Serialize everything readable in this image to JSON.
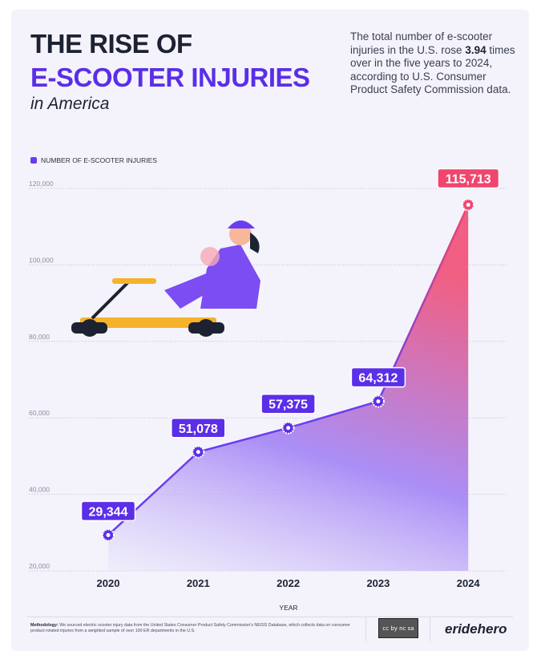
{
  "header": {
    "title_line1": "THE RISE OF",
    "title_line2": "E-SCOOTER INJURIES",
    "subtitle": "in America",
    "description_pre": "The total number of e-scooter injuries in the U.S. rose ",
    "description_bold": "3.94",
    "description_post": " times over in the five years to 2024, according to U.S. Consumer Product Safety Commission data."
  },
  "chart_data": {
    "type": "area",
    "title": "THE RISE OF E-SCOOTER INJURIES in America",
    "xlabel": "YEAR",
    "ylabel": "",
    "legend": {
      "label": "NUMBER OF E-SCOOTER INJURIES",
      "placement": "top-left"
    },
    "categories": [
      "2020",
      "2021",
      "2022",
      "2023",
      "2024"
    ],
    "series": [
      {
        "name": "NUMBER OF E-SCOOTER INJURIES",
        "values": [
          29344,
          51078,
          57375,
          64312,
          115713
        ]
      }
    ],
    "data_labels": [
      "29,344",
      "51,078",
      "57,375",
      "64,312",
      "115,713"
    ],
    "yticks": [
      20000,
      40000,
      60000,
      80000,
      100000,
      120000
    ],
    "ytick_labels": [
      "20,000",
      "40,000",
      "60,000",
      "80,000",
      "100,000",
      "120,000"
    ],
    "ylim": [
      20000,
      120000
    ],
    "grid": true,
    "colors": {
      "line": "#6a3df0",
      "label_bg": "#5b2ee8",
      "highlight": "#f0456e"
    }
  },
  "footer": {
    "methodology_label": "Methodology:",
    "methodology_text": " We sourced electric scooter injury data from the United States Consumer Product Safety Commission's NEISS Database, which collects data on consumer product-related injuries from a weighted sample of over 100 ER departments in the U.S.",
    "license": "cc by nc sa",
    "brand": "eridehero"
  }
}
